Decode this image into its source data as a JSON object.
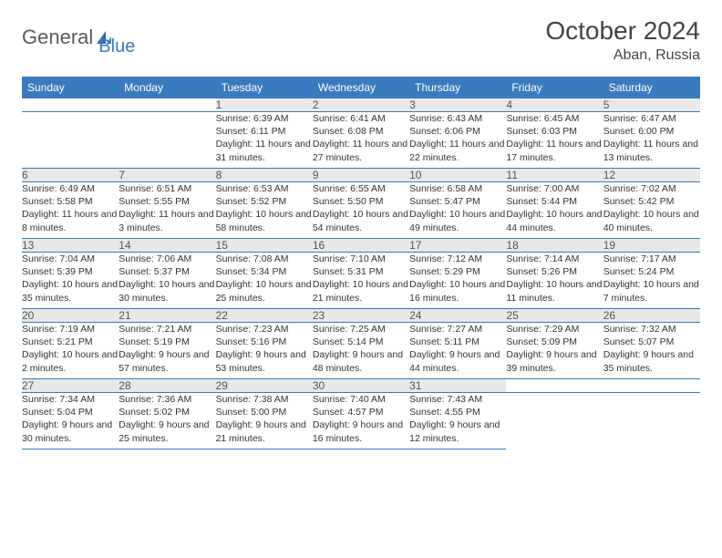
{
  "brand": {
    "part1": "General",
    "part2": "Blue"
  },
  "title": "October 2024",
  "location": "Aban, Russia",
  "colors": {
    "header_bg": "#3a7bbf",
    "header_fg": "#ffffff",
    "daynum_bg": "#e8e8e8",
    "daynum_fg": "#555555",
    "cell_border": "#3a7bbf",
    "text": "#333333",
    "logo_gray": "#5a5a5a",
    "logo_blue": "#3a7bbf"
  },
  "weekdays": [
    "Sunday",
    "Monday",
    "Tuesday",
    "Wednesday",
    "Thursday",
    "Friday",
    "Saturday"
  ],
  "grid": [
    [
      null,
      null,
      {
        "n": "1",
        "sr": "6:39 AM",
        "ss": "6:11 PM",
        "dl": "11 hours and 31 minutes."
      },
      {
        "n": "2",
        "sr": "6:41 AM",
        "ss": "6:08 PM",
        "dl": "11 hours and 27 minutes."
      },
      {
        "n": "3",
        "sr": "6:43 AM",
        "ss": "6:06 PM",
        "dl": "11 hours and 22 minutes."
      },
      {
        "n": "4",
        "sr": "6:45 AM",
        "ss": "6:03 PM",
        "dl": "11 hours and 17 minutes."
      },
      {
        "n": "5",
        "sr": "6:47 AM",
        "ss": "6:00 PM",
        "dl": "11 hours and 13 minutes."
      }
    ],
    [
      {
        "n": "6",
        "sr": "6:49 AM",
        "ss": "5:58 PM",
        "dl": "11 hours and 8 minutes."
      },
      {
        "n": "7",
        "sr": "6:51 AM",
        "ss": "5:55 PM",
        "dl": "11 hours and 3 minutes."
      },
      {
        "n": "8",
        "sr": "6:53 AM",
        "ss": "5:52 PM",
        "dl": "10 hours and 58 minutes."
      },
      {
        "n": "9",
        "sr": "6:55 AM",
        "ss": "5:50 PM",
        "dl": "10 hours and 54 minutes."
      },
      {
        "n": "10",
        "sr": "6:58 AM",
        "ss": "5:47 PM",
        "dl": "10 hours and 49 minutes."
      },
      {
        "n": "11",
        "sr": "7:00 AM",
        "ss": "5:44 PM",
        "dl": "10 hours and 44 minutes."
      },
      {
        "n": "12",
        "sr": "7:02 AM",
        "ss": "5:42 PM",
        "dl": "10 hours and 40 minutes."
      }
    ],
    [
      {
        "n": "13",
        "sr": "7:04 AM",
        "ss": "5:39 PM",
        "dl": "10 hours and 35 minutes."
      },
      {
        "n": "14",
        "sr": "7:06 AM",
        "ss": "5:37 PM",
        "dl": "10 hours and 30 minutes."
      },
      {
        "n": "15",
        "sr": "7:08 AM",
        "ss": "5:34 PM",
        "dl": "10 hours and 25 minutes."
      },
      {
        "n": "16",
        "sr": "7:10 AM",
        "ss": "5:31 PM",
        "dl": "10 hours and 21 minutes."
      },
      {
        "n": "17",
        "sr": "7:12 AM",
        "ss": "5:29 PM",
        "dl": "10 hours and 16 minutes."
      },
      {
        "n": "18",
        "sr": "7:14 AM",
        "ss": "5:26 PM",
        "dl": "10 hours and 11 minutes."
      },
      {
        "n": "19",
        "sr": "7:17 AM",
        "ss": "5:24 PM",
        "dl": "10 hours and 7 minutes."
      }
    ],
    [
      {
        "n": "20",
        "sr": "7:19 AM",
        "ss": "5:21 PM",
        "dl": "10 hours and 2 minutes."
      },
      {
        "n": "21",
        "sr": "7:21 AM",
        "ss": "5:19 PM",
        "dl": "9 hours and 57 minutes."
      },
      {
        "n": "22",
        "sr": "7:23 AM",
        "ss": "5:16 PM",
        "dl": "9 hours and 53 minutes."
      },
      {
        "n": "23",
        "sr": "7:25 AM",
        "ss": "5:14 PM",
        "dl": "9 hours and 48 minutes."
      },
      {
        "n": "24",
        "sr": "7:27 AM",
        "ss": "5:11 PM",
        "dl": "9 hours and 44 minutes."
      },
      {
        "n": "25",
        "sr": "7:29 AM",
        "ss": "5:09 PM",
        "dl": "9 hours and 39 minutes."
      },
      {
        "n": "26",
        "sr": "7:32 AM",
        "ss": "5:07 PM",
        "dl": "9 hours and 35 minutes."
      }
    ],
    [
      {
        "n": "27",
        "sr": "7:34 AM",
        "ss": "5:04 PM",
        "dl": "9 hours and 30 minutes."
      },
      {
        "n": "28",
        "sr": "7:36 AM",
        "ss": "5:02 PM",
        "dl": "9 hours and 25 minutes."
      },
      {
        "n": "29",
        "sr": "7:38 AM",
        "ss": "5:00 PM",
        "dl": "9 hours and 21 minutes."
      },
      {
        "n": "30",
        "sr": "7:40 AM",
        "ss": "4:57 PM",
        "dl": "9 hours and 16 minutes."
      },
      {
        "n": "31",
        "sr": "7:43 AM",
        "ss": "4:55 PM",
        "dl": "9 hours and 12 minutes."
      },
      null,
      null
    ]
  ],
  "labels": {
    "sunrise": "Sunrise:",
    "sunset": "Sunset:",
    "daylight": "Daylight:"
  }
}
